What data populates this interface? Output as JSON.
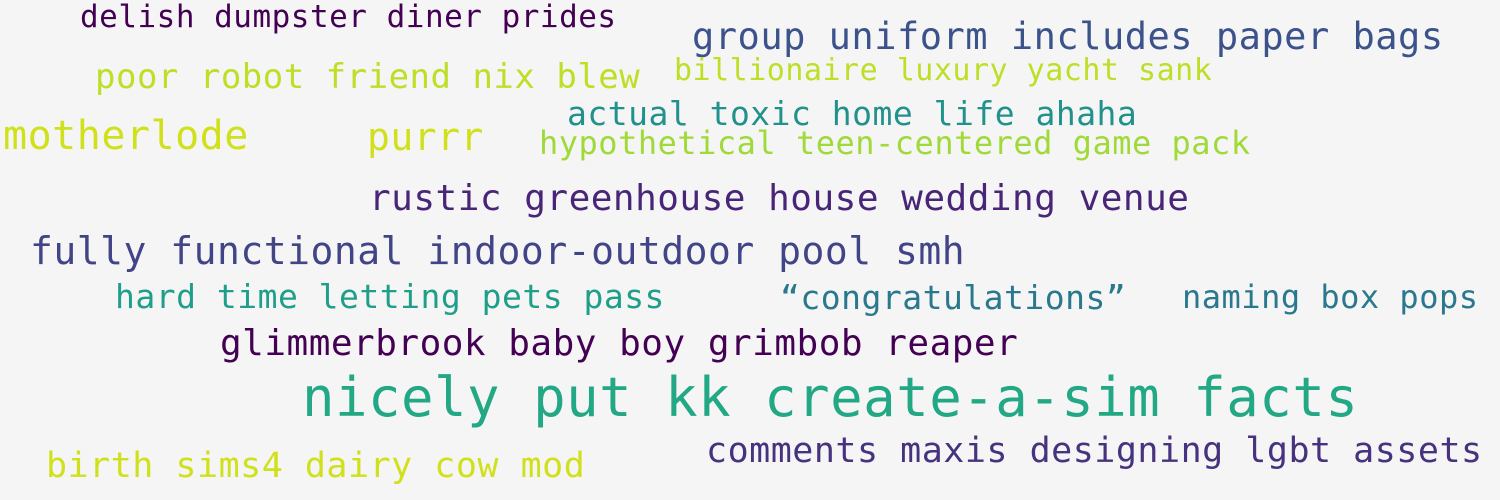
{
  "cloud": {
    "words": [
      {
        "text": "delish dumpster diner prides",
        "color": "#440154"
      },
      {
        "text": "group uniform includes paper bags",
        "color": "#3b528b"
      },
      {
        "text": "poor robot friend nix blew",
        "color": "#bddf26"
      },
      {
        "text": "billionaire luxury yacht sank",
        "color": "#bddf26"
      },
      {
        "text": "actual toxic home life ahaha",
        "color": "#21918c"
      },
      {
        "text": "motherlode",
        "color": "#d0e11c"
      },
      {
        "text": "purrr",
        "color": "#d0e11c"
      },
      {
        "text": "hypothetical teen-centered game pack",
        "color": "#a0da39"
      },
      {
        "text": "rustic greenhouse house wedding venue",
        "color": "#482576"
      },
      {
        "text": "fully functional indoor-outdoor pool smh",
        "color": "#414487"
      },
      {
        "text": "hard time letting pets pass",
        "color": "#1f9e89"
      },
      {
        "text": "“congratulations”",
        "color": "#2a788e"
      },
      {
        "text": "naming box pops",
        "color": "#2a788e"
      },
      {
        "text": "glimmerbrook baby boy grimbob reaper",
        "color": "#440154"
      },
      {
        "text": "nicely put kk create-a-sim facts",
        "color": "#22a884"
      },
      {
        "text": "birth sims4 dairy cow mod",
        "color": "#d0e11c"
      },
      {
        "text": "comments maxis designing lgbt assets",
        "color": "#46327e"
      }
    ]
  }
}
